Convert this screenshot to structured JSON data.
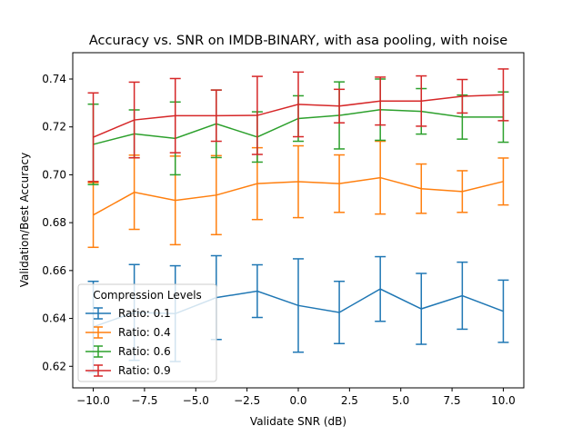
{
  "chart_data": {
    "type": "line",
    "title": "Accuracy vs. SNR on IMDB-BINARY, with asa pooling, with noise",
    "xlabel": "Validate SNR (dB)",
    "ylabel": "Validation/Best Accuracy",
    "xlim": [
      -11,
      11
    ],
    "ylim": [
      0.611,
      0.751
    ],
    "xticks": [
      -10.0,
      -7.5,
      -5.0,
      -2.5,
      0.0,
      2.5,
      5.0,
      7.5,
      10.0
    ],
    "xtick_labels": [
      "−10.0",
      "−7.5",
      "−5.0",
      "−2.5",
      "0.0",
      "2.5",
      "5.0",
      "7.5",
      "10.0"
    ],
    "yticks": [
      0.62,
      0.64,
      0.66,
      0.68,
      0.7,
      0.72,
      0.74
    ],
    "ytick_labels": [
      "0.62",
      "0.64",
      "0.66",
      "0.68",
      "0.70",
      "0.72",
      "0.74"
    ],
    "grid": false,
    "error_bars": true,
    "legend": {
      "title": "Compression Levels",
      "position": "lower-left"
    },
    "x": [
      -10,
      -8,
      -6,
      -4,
      -2,
      0,
      2,
      4,
      6,
      8,
      10
    ],
    "series": [
      {
        "name": "Ratio: 0.1",
        "color": "#1f77b4",
        "values": [
          0.6365,
          0.6425,
          0.642,
          0.6487,
          0.6514,
          0.6454,
          0.6425,
          0.6523,
          0.644,
          0.6495,
          0.643
        ],
        "errors": [
          0.019,
          0.02,
          0.02,
          0.0175,
          0.011,
          0.0195,
          0.013,
          0.0135,
          0.0148,
          0.014,
          0.013
        ]
      },
      {
        "name": "Ratio: 0.4",
        "color": "#ff7f0e",
        "values": [
          0.6832,
          0.6927,
          0.6893,
          0.6915,
          0.6963,
          0.6971,
          0.6963,
          0.6988,
          0.6942,
          0.693,
          0.6972
        ],
        "errors": [
          0.0135,
          0.0155,
          0.0185,
          0.0165,
          0.015,
          0.015,
          0.012,
          0.0152,
          0.0103,
          0.0087,
          0.0098
        ]
      },
      {
        "name": "Ratio: 0.6",
        "color": "#2ca02c",
        "values": [
          0.7127,
          0.7171,
          0.7152,
          0.7213,
          0.7158,
          0.7235,
          0.7248,
          0.7272,
          0.7265,
          0.7241,
          0.7241
        ],
        "errors": [
          0.0168,
          0.01,
          0.0152,
          0.0141,
          0.0105,
          0.0095,
          0.014,
          0.0128,
          0.0095,
          0.0092,
          0.0105
        ]
      },
      {
        "name": "Ratio: 0.9",
        "color": "#d62728",
        "values": [
          0.7157,
          0.7229,
          0.7247,
          0.7247,
          0.7248,
          0.7294,
          0.7287,
          0.7308,
          0.7308,
          0.7328,
          0.7334
        ],
        "errors": [
          0.0185,
          0.0158,
          0.0155,
          0.0107,
          0.0163,
          0.0135,
          0.007,
          0.01,
          0.0105,
          0.007,
          0.0108
        ]
      }
    ]
  }
}
